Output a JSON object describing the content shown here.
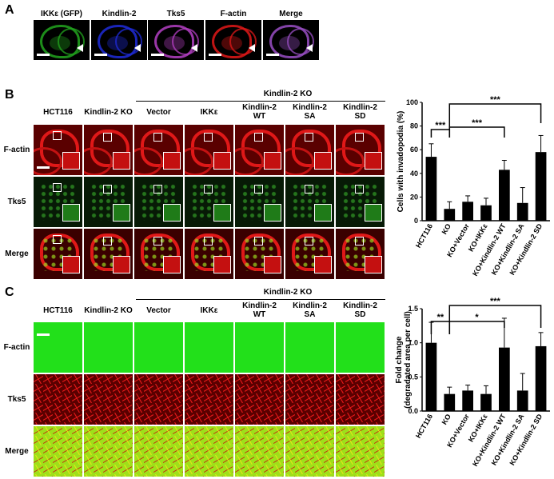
{
  "panelA": {
    "letter": "A",
    "channels": [
      {
        "label": "IKKε (GFP)",
        "color": "#22a51e"
      },
      {
        "label": "Kindlin-2",
        "color": "#1f2bd9"
      },
      {
        "label": "Tks5",
        "color": "#b43fc4"
      },
      {
        "label": "F-actin",
        "color": "#e01818"
      },
      {
        "label": "Merge",
        "color": "#9a4fc6"
      }
    ]
  },
  "panelB": {
    "letter": "B",
    "group_label": "Kindlin-2 KO",
    "columns": [
      "HCT116",
      "Kindlin-2 KO",
      "Vector",
      "IKKε",
      "Kindlin-2\nWT",
      "Kindlin-2\nSA",
      "Kindlin-2\nSD"
    ],
    "rows": [
      "F-actin",
      "Tks5",
      "Merge"
    ]
  },
  "panelC": {
    "letter": "C",
    "group_label": "Kindlin-2 KO",
    "columns": [
      "HCT116",
      "Kindlin-2 KO",
      "Vector",
      "IKKε",
      "Kindlin-2\nWT",
      "Kindlin-2\nSA",
      "Kindlin-2\nSD"
    ],
    "rows": [
      "F-actin",
      "Tks5",
      "Merge"
    ]
  },
  "chart_data": [
    {
      "type": "bar",
      "ylabel": "Cells with invadopodia (%)",
      "categories": [
        "HCT116",
        "KO",
        "KO+Vector",
        "KO+IKKε",
        "KO+Kindlin-2 WT",
        "KO+Kindlin-2 SA",
        "KO+Kindlin-2 SD"
      ],
      "values": [
        54,
        10,
        16,
        13,
        43,
        15,
        58
      ],
      "errors": [
        11,
        6,
        5,
        6,
        8,
        13,
        14
      ],
      "ylim": [
        0,
        100
      ],
      "yticks": [
        0,
        20,
        40,
        60,
        80,
        100
      ],
      "significance": [
        {
          "from": 0,
          "to": 1,
          "label": "***"
        },
        {
          "from": 1,
          "to": 4,
          "label": "***"
        },
        {
          "from": 1,
          "to": 6,
          "label": "***"
        }
      ]
    },
    {
      "type": "bar",
      "ylabel": "Fold change\n(degradated area per cell)",
      "categories": [
        "HCT116",
        "KO",
        "KO+Vector",
        "KO+IKKε",
        "KO+Kindlin-2 WT",
        "KO+Kindlin-2 SA",
        "KO+Kindlin-2 SD"
      ],
      "values": [
        1.0,
        0.25,
        0.3,
        0.25,
        0.93,
        0.3,
        0.95
      ],
      "errors": [
        0.3,
        0.1,
        0.08,
        0.12,
        0.43,
        0.25,
        0.2
      ],
      "ylim": [
        0,
        1.5
      ],
      "yticks": [
        0.0,
        0.5,
        1.0,
        1.5
      ],
      "significance": [
        {
          "from": 0,
          "to": 1,
          "label": "**"
        },
        {
          "from": 1,
          "to": 4,
          "label": "*"
        },
        {
          "from": 1,
          "to": 6,
          "label": "***"
        }
      ]
    }
  ]
}
